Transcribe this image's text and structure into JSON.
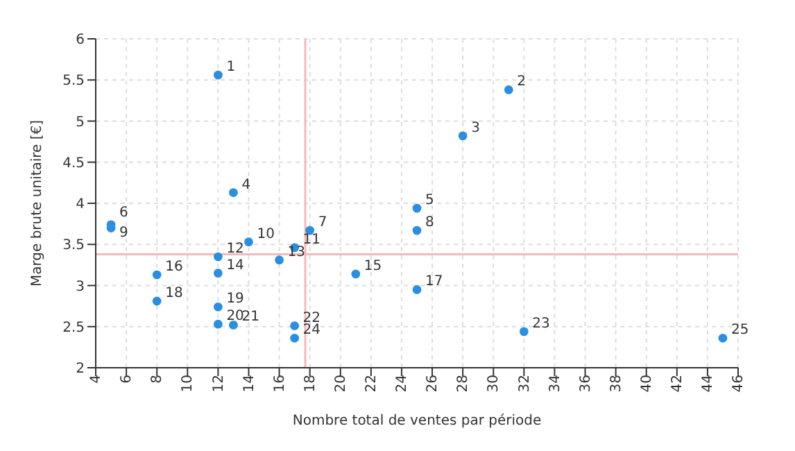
{
  "chart_data": {
    "type": "scatter",
    "xlabel": "Nombre total de ventes par période",
    "ylabel": "Marge brute unitaire [€]",
    "x": [
      12,
      31,
      28,
      13,
      25,
      5,
      18,
      25,
      5,
      14,
      17,
      12,
      16,
      12,
      21,
      8,
      25,
      8,
      12,
      12,
      13,
      17,
      32,
      17,
      45
    ],
    "series": [
      {
        "color": "#2a8fe0",
        "values": [
          5.56,
          5.38,
          4.82,
          4.13,
          3.94,
          3.74,
          3.67,
          3.67,
          3.7,
          3.53,
          3.46,
          3.35,
          3.31,
          3.15,
          3.14,
          3.13,
          2.95,
          2.81,
          2.74,
          2.53,
          2.52,
          2.51,
          2.44,
          2.36,
          2.36
        ]
      }
    ],
    "xlim": [
      4,
      46
    ],
    "xticks": [
      4,
      6,
      8,
      10,
      12,
      14,
      16,
      18,
      20,
      22,
      24,
      26,
      28,
      30,
      32,
      34,
      36,
      38,
      40,
      42,
      44,
      46
    ],
    "ylim": [
      2,
      6
    ],
    "yticks": [
      2,
      2.5,
      3,
      3.5,
      4,
      4.5,
      5,
      5.5,
      6
    ],
    "grid": true,
    "marker": "circle",
    "legend": false,
    "ref_lines": [
      {
        "axis": "x",
        "value": 17.7,
        "color": "#f6b8b8"
      },
      {
        "axis": "y",
        "value": 3.38,
        "color": "#f6b8b8"
      }
    ],
    "annotations": [
      {
        "text": "1",
        "x": 12,
        "y": 5.56
      },
      {
        "text": "2",
        "x": 31,
        "y": 5.38
      },
      {
        "text": "3",
        "x": 28,
        "y": 4.82
      },
      {
        "text": "4",
        "x": 13,
        "y": 4.13
      },
      {
        "text": "5",
        "x": 25,
        "y": 3.94
      },
      {
        "text": "6",
        "x": 5,
        "y": 3.74
      },
      {
        "text": "7",
        "x": 18,
        "y": 3.67
      },
      {
        "text": "8",
        "x": 25,
        "y": 3.67
      },
      {
        "text": "9",
        "x": 5,
        "y": 3.7
      },
      {
        "text": "10",
        "x": 14,
        "y": 3.53
      },
      {
        "text": "11",
        "x": 17,
        "y": 3.46
      },
      {
        "text": "12",
        "x": 12,
        "y": 3.35
      },
      {
        "text": "13",
        "x": 16,
        "y": 3.31
      },
      {
        "text": "14",
        "x": 12,
        "y": 3.15
      },
      {
        "text": "15",
        "x": 21,
        "y": 3.14
      },
      {
        "text": "16",
        "x": 8,
        "y": 3.13
      },
      {
        "text": "17",
        "x": 25,
        "y": 2.95
      },
      {
        "text": "18",
        "x": 8,
        "y": 2.81
      },
      {
        "text": "19",
        "x": 12,
        "y": 2.74
      },
      {
        "text": "20",
        "x": 12,
        "y": 2.53
      },
      {
        "text": "21",
        "x": 13,
        "y": 2.52
      },
      {
        "text": "22",
        "x": 17,
        "y": 2.51
      },
      {
        "text": "23",
        "x": 32,
        "y": 2.44
      },
      {
        "text": "24",
        "x": 17,
        "y": 2.36
      },
      {
        "text": "25",
        "x": 45,
        "y": 2.36
      }
    ]
  }
}
